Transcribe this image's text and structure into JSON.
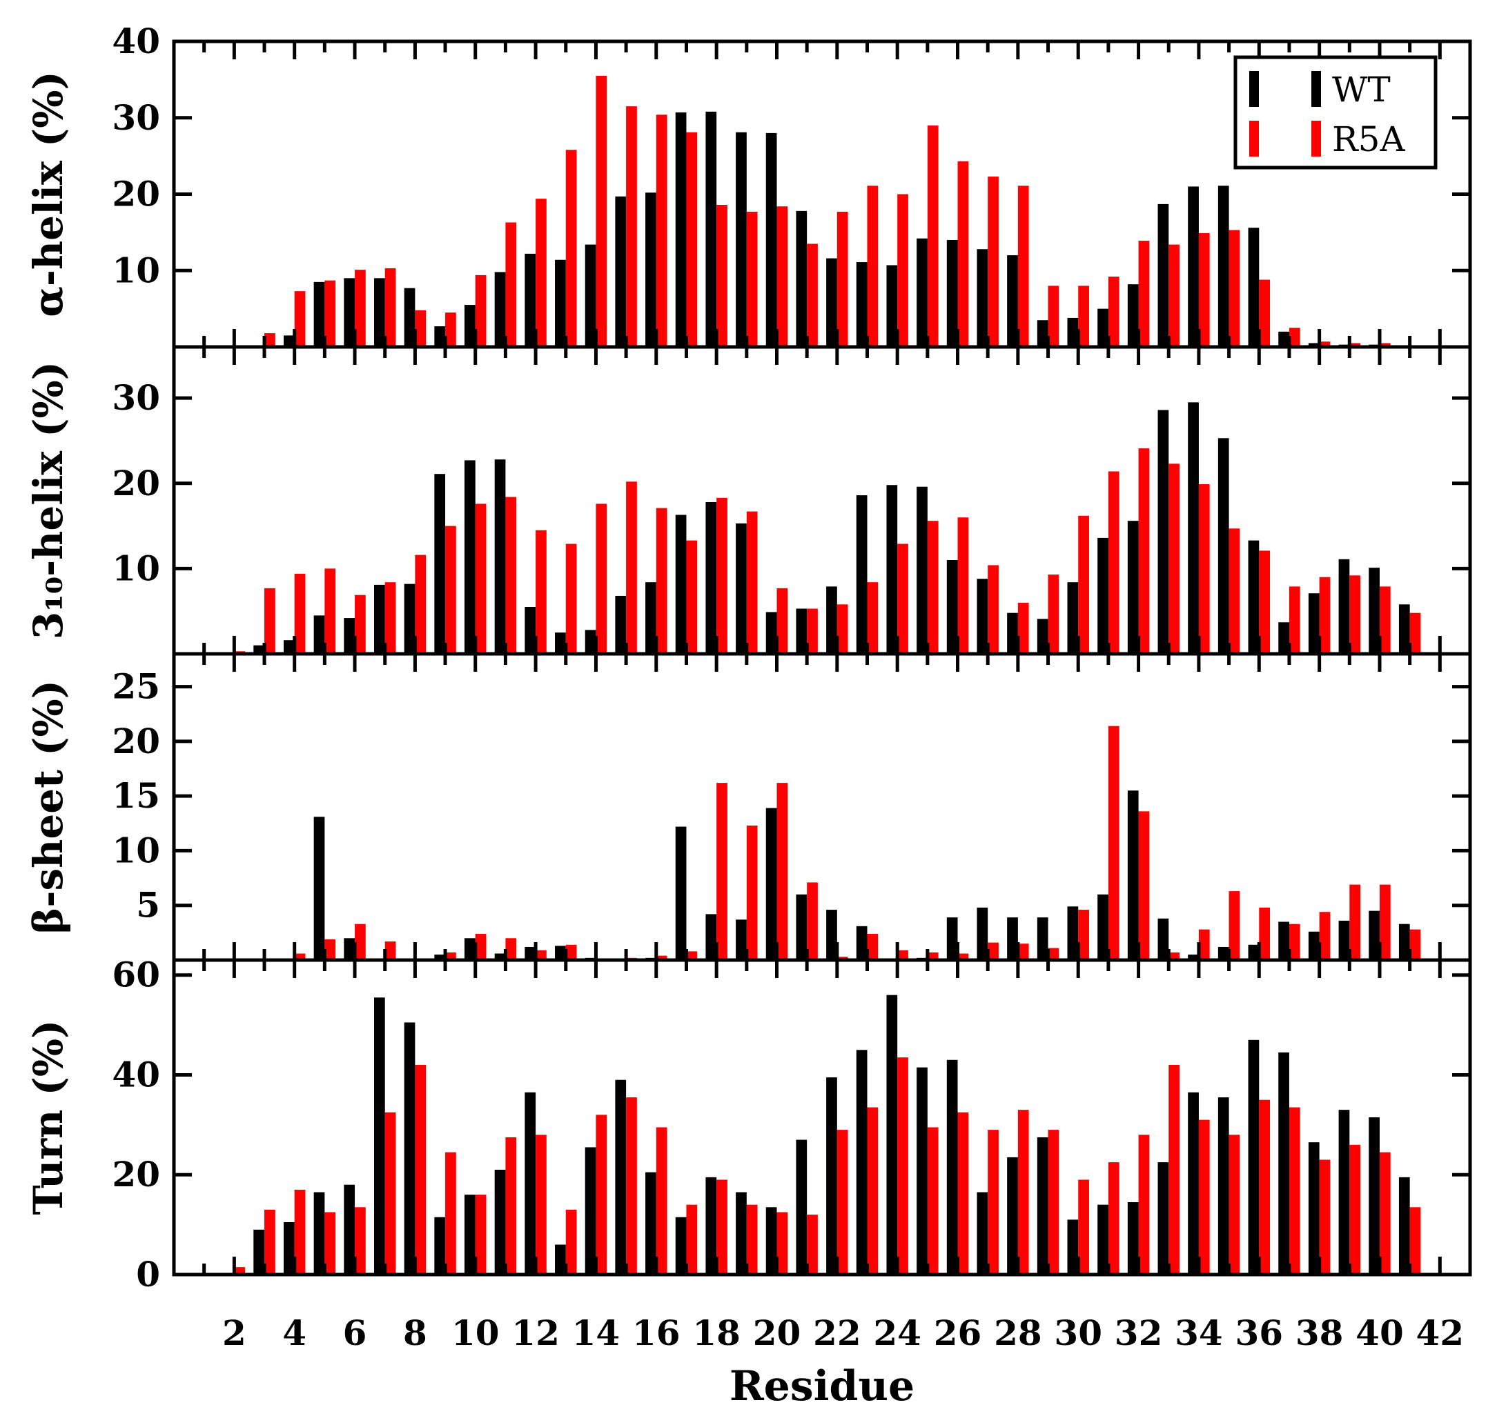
{
  "chart_data": {
    "type": "bar",
    "x_label": "Residue",
    "x_ticks": [
      "2",
      "4",
      "6",
      "8",
      "10",
      "12",
      "14",
      "16",
      "18",
      "20",
      "22",
      "24",
      "26",
      "28",
      "30",
      "32",
      "34",
      "36",
      "38",
      "40",
      "42"
    ],
    "x_range": [
      0,
      43
    ],
    "legend": {
      "placement": "top-right",
      "entries": [
        {
          "name": "WT",
          "color": "#000000"
        },
        {
          "name": "R5A",
          "color": "#ff0000"
        }
      ]
    },
    "colors": {
      "WT": "#000000",
      "R5A": "#ff0000"
    },
    "residues": [
      2,
      3,
      4,
      5,
      6,
      7,
      8,
      9,
      10,
      11,
      12,
      13,
      14,
      15,
      16,
      17,
      18,
      19,
      20,
      21,
      22,
      23,
      24,
      25,
      26,
      27,
      28,
      29,
      30,
      31,
      32,
      33,
      34,
      35,
      36,
      37,
      38,
      39,
      40,
      41
    ],
    "panels": [
      {
        "ylabel": "α-helix (%)",
        "ylim": [
          0,
          40
        ],
        "y_ticks": [
          "10",
          "20",
          "30",
          "40"
        ],
        "series": [
          {
            "name": "WT",
            "values": [
              0,
              0,
              1.5,
              8.5,
              9,
              9,
              7.7,
              2.7,
              5.5,
              9.8,
              12.2,
              11.4,
              13.4,
              19.7,
              20.2,
              30.7,
              30.8,
              28.1,
              28,
              17.8,
              11.6,
              11.1,
              10.7,
              14.2,
              14,
              12.8,
              12,
              3.5,
              3.8,
              5,
              8.2,
              18.7,
              21,
              21.1,
              15.6,
              2,
              0.5,
              0.3,
              0.3,
              0.2
            ]
          },
          {
            "name": "R5A",
            "values": [
              0.1,
              1.8,
              7.3,
              8.7,
              10.1,
              10.3,
              4.8,
              4.5,
              9.4,
              16.3,
              19.4,
              25.8,
              35.5,
              31.5,
              30.4,
              28.1,
              18.6,
              17.7,
              18.4,
              13.5,
              17.7,
              21.1,
              20,
              29,
              24.3,
              22.3,
              21.1,
              8,
              8,
              9.2,
              13.9,
              13.4,
              14.9,
              15.3,
              8.8,
              2.5,
              0.7,
              0.5,
              0.5,
              0.1
            ]
          }
        ]
      },
      {
        "ylabel": "3₁₀-helix (%)",
        "ylim": [
          0,
          36
        ],
        "y_ticks": [
          "10",
          "20",
          "30"
        ],
        "series": [
          {
            "name": "WT",
            "values": [
              0,
              1,
              1.6,
              4.5,
              4.2,
              8.1,
              8.2,
              21.1,
              22.7,
              22.8,
              5.5,
              2.5,
              2.8,
              6.8,
              8.4,
              16.3,
              17.8,
              15.3,
              4.9,
              5.3,
              7.9,
              18.6,
              19.8,
              19.6,
              11,
              8.8,
              4.8,
              4.1,
              8.4,
              13.6,
              15.6,
              28.6,
              29.5,
              25.3,
              13.3,
              3.7,
              7.1,
              11.1,
              10.1,
              5.8
            ]
          },
          {
            "name": "R5A",
            "values": [
              0.3,
              7.7,
              9.4,
              10,
              6.9,
              8.4,
              11.6,
              15,
              17.6,
              18.4,
              14.5,
              12.9,
              17.6,
              20.2,
              17.1,
              13.3,
              18.3,
              16.7,
              7.7,
              5.3,
              5.8,
              8.4,
              12.9,
              15.6,
              16,
              10.4,
              6,
              9.3,
              16.2,
              21.4,
              24.1,
              22.3,
              19.9,
              14.7,
              12.1,
              7.9,
              9,
              9.2,
              7.9,
              4.8
            ]
          }
        ]
      },
      {
        "ylabel": "β-sheet (%)",
        "ylim": [
          0,
          28
        ],
        "y_ticks": [
          "5",
          "10",
          "15",
          "20",
          "25"
        ],
        "series": [
          {
            "name": "WT",
            "values": [
              0,
              0,
              0,
              13.1,
              2,
              0,
              0,
              0.5,
              2,
              0.6,
              1.2,
              1.3,
              0.2,
              0,
              0.2,
              12.2,
              4.2,
              3.7,
              13.9,
              6,
              4.6,
              3.1,
              0,
              0.2,
              3.9,
              4.8,
              3.9,
              3.9,
              4.9,
              6,
              15.5,
              3.8,
              0.5,
              1.2,
              1.4,
              3.5,
              2.6,
              3.6,
              4.5,
              3.3
            ]
          },
          {
            "name": "R5A",
            "values": [
              0,
              0.1,
              0.6,
              1.9,
              3.3,
              1.7,
              0,
              0.7,
              2.4,
              2,
              0.9,
              1.4,
              0,
              0.2,
              0.4,
              0.8,
              16.2,
              12.3,
              16.2,
              7.1,
              0.3,
              2.4,
              0.9,
              0.7,
              0.6,
              1.6,
              1.5,
              1.1,
              4.6,
              21.4,
              13.6,
              0.7,
              2.8,
              6.3,
              4.8,
              3.3,
              4.4,
              6.9,
              6.9,
              2.8
            ]
          }
        ]
      },
      {
        "ylabel": "Turn (%)",
        "ylim": [
          0,
          63
        ],
        "y_ticks": [
          "0",
          "20",
          "40",
          "60"
        ],
        "series": [
          {
            "name": "WT",
            "values": [
              0,
              9,
              10.5,
              16.5,
              18,
              55.5,
              50.5,
              11.5,
              16,
              21,
              36.5,
              6,
              25.5,
              39,
              20.5,
              11.5,
              19.5,
              16.5,
              13.5,
              27,
              39.5,
              45,
              56,
              41.5,
              43,
              16.5,
              23.5,
              27.5,
              11,
              14,
              14.5,
              22.5,
              36.5,
              35.5,
              47,
              44.5,
              26.5,
              33,
              31.5,
              19.5
            ]
          },
          {
            "name": "R5A",
            "values": [
              1.5,
              13,
              17,
              12.5,
              13.5,
              32.5,
              42,
              24.5,
              16,
              27.5,
              28,
              13,
              32,
              35.5,
              29.5,
              14,
              19,
              14,
              12.5,
              12,
              29,
              33.5,
              43.5,
              29.5,
              32.5,
              29,
              33,
              29,
              19,
              22.5,
              28,
              42,
              31,
              28,
              35,
              33.5,
              23,
              26,
              24.5,
              13.5
            ]
          }
        ]
      }
    ]
  }
}
